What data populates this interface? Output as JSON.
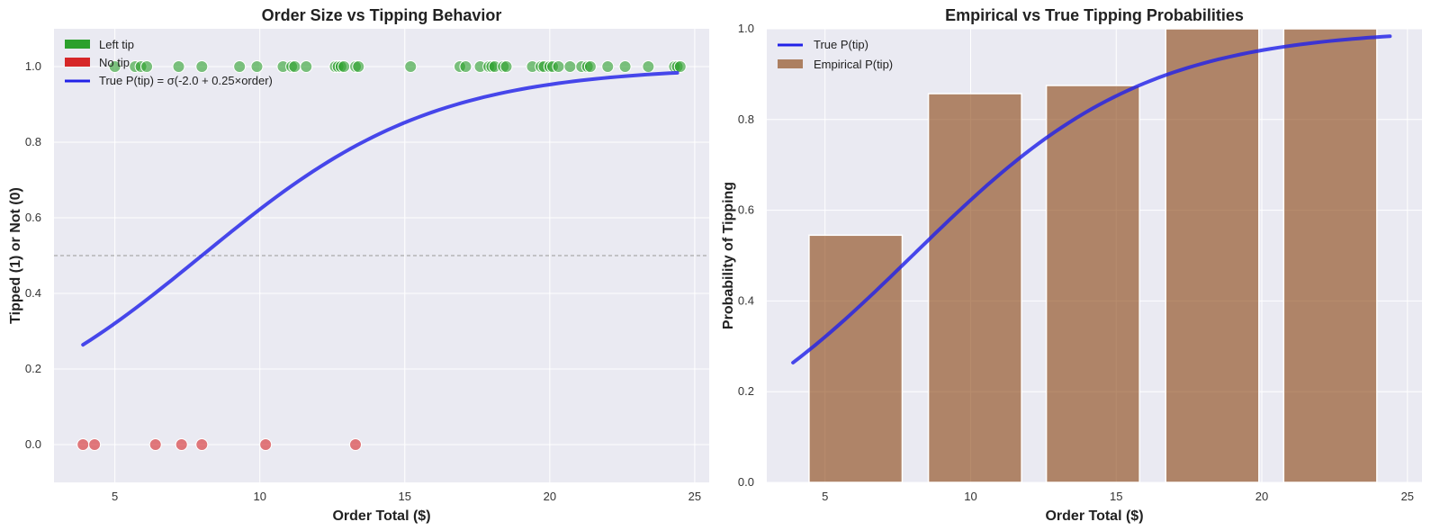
{
  "colors": {
    "tipped": "#2ca02c",
    "no_tip": "#d62728",
    "curve": "#2222e8",
    "bars": "#8b4513",
    "plot_bg": "#eaeaf2",
    "grid": "#ffffff",
    "threshold": "#aaaaaa"
  },
  "chart_data": [
    {
      "type": "scatter",
      "title": "Order Size vs Tipping Behavior",
      "xlabel": "Order Total ($)",
      "ylabel": "Tipped (1) or Not (0)",
      "xlim": [
        2.9,
        25.5
      ],
      "ylim": [
        -0.1,
        1.1
      ],
      "xticks": [
        5,
        10,
        15,
        20,
        25
      ],
      "xtick_labels": [
        "5",
        "10",
        "15",
        "20",
        "25"
      ],
      "yticks": [
        0.0,
        0.2,
        0.4,
        0.6,
        0.8,
        1.0
      ],
      "ytick_labels": [
        "0.0",
        "0.2",
        "0.4",
        "0.6",
        "0.8",
        "1.0"
      ],
      "grid": true,
      "legend_position": "top-left",
      "legend": [
        {
          "label": "Left tip",
          "kind": "patch",
          "color_key": "tipped"
        },
        {
          "label": "No tip",
          "kind": "patch",
          "color_key": "no_tip"
        },
        {
          "label": "True P(tip) = σ(-2.0 + 0.25×order)",
          "kind": "line",
          "color_key": "curve"
        }
      ],
      "threshold": 0.5,
      "series": [
        {
          "name": "Left tip",
          "y": 1,
          "x": [
            5.0,
            5.7,
            5.9,
            6.1,
            7.2,
            8.0,
            9.3,
            9.9,
            10.8,
            11.1,
            11.2,
            11.6,
            12.6,
            12.7,
            12.8,
            12.9,
            13.3,
            13.4,
            15.2,
            16.9,
            17.1,
            17.6,
            17.9,
            18.0,
            18.1,
            18.4,
            18.5,
            19.4,
            19.7,
            19.8,
            20.0,
            20.1,
            20.3,
            20.7,
            21.1,
            21.3,
            21.4,
            22.0,
            22.6,
            23.4,
            24.3,
            24.4,
            24.5
          ]
        },
        {
          "name": "No tip",
          "y": 0,
          "x": [
            3.9,
            4.3,
            6.4,
            7.3,
            8.0,
            10.2,
            13.3
          ]
        }
      ],
      "curve": {
        "name": "True P(tip)",
        "intercept": -2.0,
        "slope": 0.25,
        "x_range": [
          3.9,
          24.4
        ]
      }
    },
    {
      "type": "bar",
      "title": "Empirical vs True Tipping Probabilities",
      "xlabel": "Order Total ($)",
      "ylabel": "Probability of Tipping",
      "xlim": [
        3.0,
        25.5
      ],
      "ylim": [
        0.0,
        1.0
      ],
      "xticks": [
        5,
        10,
        15,
        20,
        25
      ],
      "xtick_labels": [
        "5",
        "10",
        "15",
        "20",
        "25"
      ],
      "yticks": [
        0.0,
        0.2,
        0.4,
        0.6,
        0.8,
        1.0
      ],
      "ytick_labels": [
        "0.0",
        "0.2",
        "0.4",
        "0.6",
        "0.8",
        "1.0"
      ],
      "grid": true,
      "legend_position": "top-left",
      "legend": [
        {
          "label": "True P(tip)",
          "kind": "line",
          "color_key": "curve"
        },
        {
          "label": "Empirical P(tip)",
          "kind": "patch",
          "color_key": "bars"
        }
      ],
      "bars": [
        {
          "x_center": 6.05,
          "width": 3.2,
          "value": 0.545
        },
        {
          "x_center": 10.15,
          "width": 3.2,
          "value": 0.857
        },
        {
          "x_center": 14.2,
          "width": 3.2,
          "value": 0.875
        },
        {
          "x_center": 18.3,
          "width": 3.2,
          "value": 1.0
        },
        {
          "x_center": 22.35,
          "width": 3.2,
          "value": 1.0
        }
      ],
      "curve": {
        "name": "True P(tip)",
        "intercept": -2.0,
        "slope": 0.25,
        "x_range": [
          3.9,
          24.4
        ]
      }
    }
  ]
}
